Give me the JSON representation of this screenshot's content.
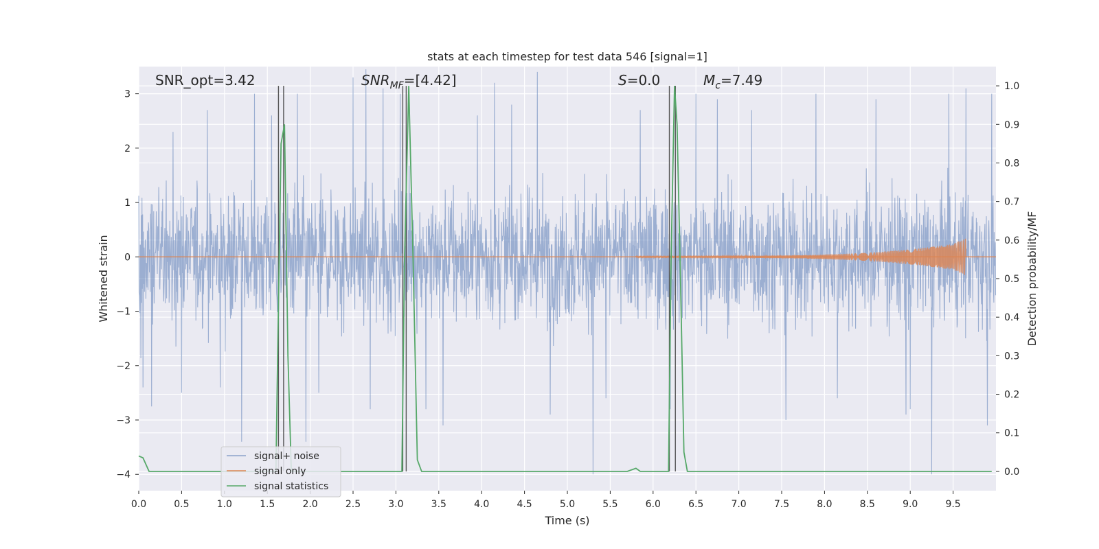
{
  "chart_data": {
    "type": "line",
    "title": "stats at each timestep for test data 546 [signal=1]",
    "xlabel": "Time (s)",
    "ylabel_left": "Whitened strain",
    "ylabel_right": "Detection probability/MF",
    "xlim": [
      0.0,
      10.0
    ],
    "ylim_left": [
      -4.3,
      3.5
    ],
    "ylim_right": [
      -0.05,
      1.05
    ],
    "grid": true,
    "legend_position": "lower-left",
    "x_ticks": [
      "0.0",
      "0.5",
      "1.0",
      "1.5",
      "2.0",
      "2.5",
      "3.0",
      "3.5",
      "4.0",
      "4.5",
      "5.0",
      "5.5",
      "6.0",
      "6.5",
      "7.0",
      "7.5",
      "8.0",
      "8.5",
      "9.0",
      "9.5"
    ],
    "y_ticks_left": [
      "−4",
      "−3",
      "−2",
      "−1",
      "0",
      "1",
      "2",
      "3"
    ],
    "y_ticks_right": [
      "0.0",
      "0.1",
      "0.2",
      "0.3",
      "0.4",
      "0.5",
      "0.6",
      "0.7",
      "0.8",
      "0.9",
      "1.0"
    ],
    "annotations": {
      "snr_opt": "SNR_opt=3.42",
      "snr_mf_base": "SNR",
      "snr_mf_sub": "MF",
      "snr_mf_rest": "=[4.42]",
      "s_base": "S",
      "s_rest": "=0.0",
      "mc_base": "M",
      "mc_sub": "c",
      "mc_rest": "=7.49"
    },
    "series": [
      {
        "name": "signal+ noise",
        "axis": "left",
        "color": "#4c72b0",
        "description_level": "noise band approx ±2 with spikes",
        "spikes": [
          [
            0.05,
            -2.4
          ],
          [
            0.15,
            -2.75
          ],
          [
            0.4,
            2.3
          ],
          [
            0.5,
            -2.5
          ],
          [
            0.8,
            2.7
          ],
          [
            0.95,
            -2.4
          ],
          [
            1.2,
            -3.4
          ],
          [
            1.35,
            3.0
          ],
          [
            1.55,
            2.6
          ],
          [
            1.85,
            3.0
          ],
          [
            1.95,
            -3.4
          ],
          [
            2.1,
            -2.5
          ],
          [
            2.5,
            3.3
          ],
          [
            2.65,
            3.5
          ],
          [
            2.7,
            -2.8
          ],
          [
            2.85,
            3.1
          ],
          [
            3.05,
            3.0
          ],
          [
            3.35,
            -2.8
          ],
          [
            3.55,
            -3.1
          ],
          [
            3.95,
            2.6
          ],
          [
            4.15,
            3.2
          ],
          [
            4.35,
            2.8
          ],
          [
            4.65,
            3.4
          ],
          [
            4.8,
            -2.9
          ],
          [
            5.3,
            -4.0
          ],
          [
            5.45,
            -2.6
          ],
          [
            5.85,
            2.7
          ],
          [
            6.2,
            -2.8
          ],
          [
            6.5,
            3.0
          ],
          [
            6.75,
            2.9
          ],
          [
            7.15,
            2.7
          ],
          [
            7.55,
            -3.0
          ],
          [
            7.9,
            3.0
          ],
          [
            8.15,
            -2.6
          ],
          [
            8.6,
            2.9
          ],
          [
            8.95,
            -2.9
          ],
          [
            9.0,
            -2.8
          ],
          [
            9.25,
            -4.0
          ],
          [
            9.45,
            3.0
          ],
          [
            9.65,
            3.1
          ],
          [
            9.9,
            -3.1
          ],
          [
            9.95,
            3.0
          ]
        ]
      },
      {
        "name": "signal only",
        "axis": "left",
        "color": "#dd8452",
        "chirp_start": 5.8,
        "chirp_end": 9.65,
        "chirp_peak_amplitude": 0.35
      },
      {
        "name": "signal statistics",
        "axis": "right",
        "color": "#55a868",
        "x": [
          0.0,
          0.05,
          0.12,
          0.2,
          1.6,
          1.62,
          1.66,
          1.7,
          1.74,
          1.78,
          2.15,
          3.0,
          3.07,
          3.1,
          3.15,
          3.2,
          3.25,
          3.3,
          3.35,
          5.7,
          5.8,
          5.85,
          5.9,
          6.15,
          6.18,
          6.21,
          6.25,
          6.28,
          6.32,
          6.36,
          6.4,
          9.95
        ],
        "values": [
          0.04,
          0.035,
          0.0,
          0.0,
          0.0,
          0.3,
          0.85,
          0.9,
          0.3,
          0.0,
          0.0,
          0.0,
          0.0,
          0.55,
          1.0,
          0.55,
          0.03,
          0.0,
          0.0,
          0.0,
          0.008,
          0.0,
          0.0,
          0.0,
          0.0,
          0.55,
          1.0,
          0.9,
          0.5,
          0.05,
          0.0,
          0.0
        ]
      }
    ],
    "vertical_lines": [
      1.63,
      1.69,
      3.08,
      3.12,
      6.19,
      6.26
    ]
  }
}
